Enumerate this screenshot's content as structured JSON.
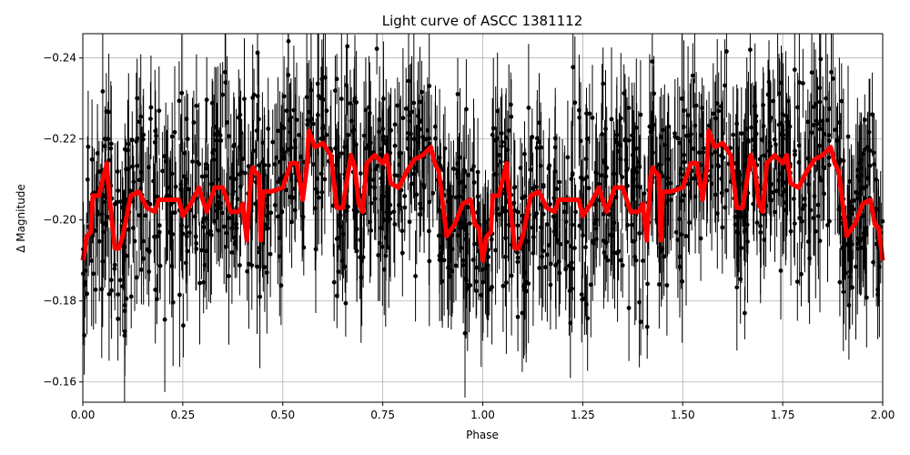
{
  "chart_data": {
    "type": "scatter",
    "title": "Light curve of ASCC 1381112",
    "xlabel": "Phase",
    "ylabel": "Δ Magnitude",
    "xlim": [
      0.0,
      2.0
    ],
    "ylim": [
      -0.155,
      -0.246
    ],
    "y_inverted": true,
    "grid": true,
    "xticks": [
      "0.00",
      "0.25",
      "0.50",
      "0.75",
      "1.00",
      "1.25",
      "1.50",
      "1.75",
      "2.00"
    ],
    "xtick_values": [
      0.0,
      0.25,
      0.5,
      0.75,
      1.0,
      1.25,
      1.5,
      1.75,
      2.0
    ],
    "yticks": [
      "−0.24",
      "−0.22",
      "−0.20",
      "−0.18",
      "−0.16"
    ],
    "ytick_values": [
      -0.24,
      -0.22,
      -0.2,
      -0.18,
      -0.16
    ],
    "series": [
      {
        "name": "observations",
        "style": "black points with vertical error bars",
        "color": "#000000",
        "note": "dense scatter of points spanning roughly -0.245 to -0.155 across all phases, error bars ~±0.01-0.02"
      },
      {
        "name": "binned / smoothed model",
        "style": "thick line",
        "color": "#ff0000",
        "x": [
          0.0,
          0.01,
          0.02,
          0.025,
          0.04,
          0.05,
          0.06,
          0.065,
          0.08,
          0.09,
          0.1,
          0.12,
          0.14,
          0.16,
          0.18,
          0.19,
          0.2,
          0.22,
          0.24,
          0.25,
          0.27,
          0.29,
          0.31,
          0.33,
          0.35,
          0.37,
          0.38,
          0.39,
          0.4,
          0.41,
          0.42,
          0.425,
          0.43,
          0.44,
          0.445,
          0.45,
          0.46,
          0.47,
          0.5,
          0.52,
          0.535,
          0.55,
          0.56,
          0.565,
          0.58,
          0.6,
          0.62,
          0.635,
          0.65,
          0.67,
          0.68,
          0.69,
          0.7,
          0.71,
          0.73,
          0.75,
          0.76,
          0.77,
          0.79,
          0.81,
          0.83,
          0.85,
          0.87,
          0.88,
          0.89,
          0.91,
          0.93,
          0.95,
          0.97,
          0.98,
          0.99,
          1.0
        ],
        "y": [
          -0.19,
          -0.196,
          -0.197,
          -0.206,
          -0.206,
          -0.21,
          -0.214,
          -0.207,
          -0.193,
          -0.193,
          -0.196,
          -0.206,
          -0.207,
          -0.203,
          -0.202,
          -0.205,
          -0.205,
          -0.205,
          -0.205,
          -0.201,
          -0.204,
          -0.208,
          -0.202,
          -0.208,
          -0.208,
          -0.202,
          -0.202,
          -0.202,
          -0.204,
          -0.195,
          -0.211,
          -0.213,
          -0.212,
          -0.211,
          -0.195,
          -0.207,
          -0.207,
          -0.207,
          -0.208,
          -0.214,
          -0.214,
          -0.205,
          -0.213,
          -0.222,
          -0.218,
          -0.219,
          -0.216,
          -0.203,
          -0.203,
          -0.216,
          -0.213,
          -0.204,
          -0.202,
          -0.214,
          -0.216,
          -0.214,
          -0.216,
          -0.209,
          -0.208,
          -0.212,
          -0.215,
          -0.216,
          -0.218,
          -0.214,
          -0.212,
          -0.196,
          -0.199,
          -0.204,
          -0.205,
          -0.199,
          -0.198,
          -0.19
        ]
      }
    ]
  }
}
